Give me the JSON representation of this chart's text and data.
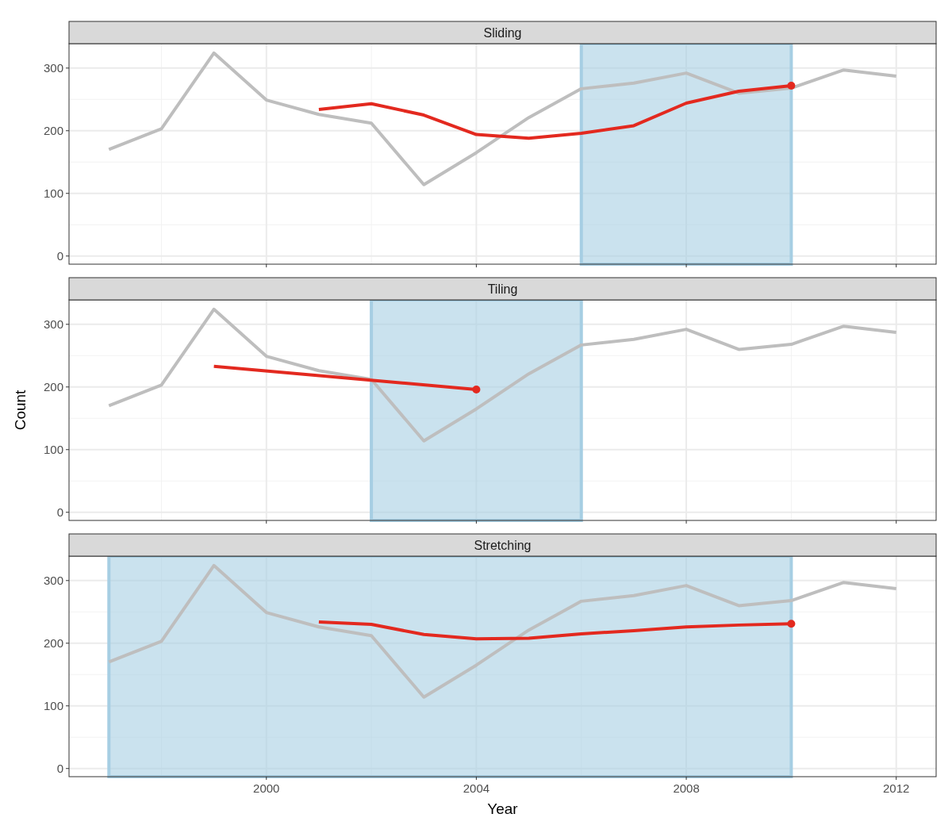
{
  "chart_data": [
    {
      "type": "line",
      "title": "Sliding",
      "xlim": [
        1996.24,
        2012.76
      ],
      "xticks": [
        2000,
        2004,
        2008,
        2012
      ],
      "ylim": [
        -13,
        339
      ],
      "yticks": [
        0,
        100,
        200,
        300
      ],
      "grid": true,
      "tick_labels": "y",
      "line_style": "solid",
      "bands": [
        {
          "axis": "x",
          "from": 2006,
          "to": 2010,
          "color": "#a6cee3"
        }
      ],
      "series": [
        {
          "color": "#bebebe",
          "x": [
            1997,
            1998,
            1999,
            2000,
            2001,
            2002,
            2003,
            2004,
            2005,
            2006,
            2007,
            2008,
            2009,
            2010,
            2011,
            2012
          ],
          "values": [
            170,
            203,
            324,
            249,
            226,
            212,
            114,
            165,
            221,
            267,
            276,
            292,
            260,
            268,
            297,
            287
          ]
        },
        {
          "color": "#e3291f",
          "x": [
            2001,
            2002,
            2003,
            2004,
            2005,
            2006,
            2007,
            2008,
            2009,
            2010
          ],
          "values": [
            234,
            243,
            225,
            194,
            188,
            196,
            208,
            244,
            263,
            272
          ]
        },
        {
          "type": "scatter",
          "color": "#e3291f",
          "x": [
            2010
          ],
          "values": [
            272
          ]
        }
      ]
    },
    {
      "type": "line",
      "title": "Tiling",
      "ylabel": "Count",
      "xlim": [
        1996.24,
        2012.76
      ],
      "xticks": [
        2000,
        2004,
        2008,
        2012
      ],
      "ylim": [
        -13,
        339
      ],
      "yticks": [
        0,
        100,
        200,
        300
      ],
      "grid": true,
      "tick_labels": "y",
      "line_style": "solid",
      "bands": [
        {
          "axis": "x",
          "from": 2002,
          "to": 2006,
          "color": "#a6cee3"
        }
      ],
      "series": [
        {
          "color": "#bebebe",
          "x": [
            1997,
            1998,
            1999,
            2000,
            2001,
            2002,
            2003,
            2004,
            2005,
            2006,
            2007,
            2008,
            2009,
            2010,
            2011,
            2012
          ],
          "values": [
            170,
            203,
            324,
            249,
            226,
            212,
            114,
            165,
            221,
            267,
            276,
            292,
            260,
            268,
            297,
            287
          ]
        },
        {
          "color": "#e3291f",
          "x": [
            1999,
            2004
          ],
          "values": [
            233,
            196
          ]
        },
        {
          "type": "scatter",
          "color": "#e3291f",
          "x": [
            2004
          ],
          "values": [
            196
          ]
        }
      ]
    },
    {
      "type": "line",
      "title": "Stretching",
      "xlabel": "Year",
      "xlim": [
        1996.24,
        2012.76
      ],
      "xticks": [
        2000,
        2004,
        2008,
        2012
      ],
      "ylim": [
        -13,
        339
      ],
      "yticks": [
        0,
        100,
        200,
        300
      ],
      "grid": true,
      "line_style": "solid",
      "bands": [
        {
          "axis": "x",
          "from": 1997,
          "to": 2010,
          "color": "#a6cee3"
        }
      ],
      "series": [
        {
          "color": "#bebebe",
          "x": [
            1997,
            1998,
            1999,
            2000,
            2001,
            2002,
            2003,
            2004,
            2005,
            2006,
            2007,
            2008,
            2009,
            2010,
            2011,
            2012
          ],
          "values": [
            170,
            203,
            324,
            249,
            226,
            212,
            114,
            165,
            221,
            267,
            276,
            292,
            260,
            268,
            297,
            287
          ]
        },
        {
          "color": "#e3291f",
          "x": [
            2001,
            2002,
            2003,
            2004,
            2005,
            2006,
            2007,
            2008,
            2009,
            2010
          ],
          "values": [
            234,
            230,
            214,
            207,
            208,
            215,
            220,
            226,
            229,
            231
          ]
        },
        {
          "type": "scatter",
          "color": "#e3291f",
          "x": [
            2010
          ],
          "values": [
            231
          ]
        }
      ]
    }
  ]
}
